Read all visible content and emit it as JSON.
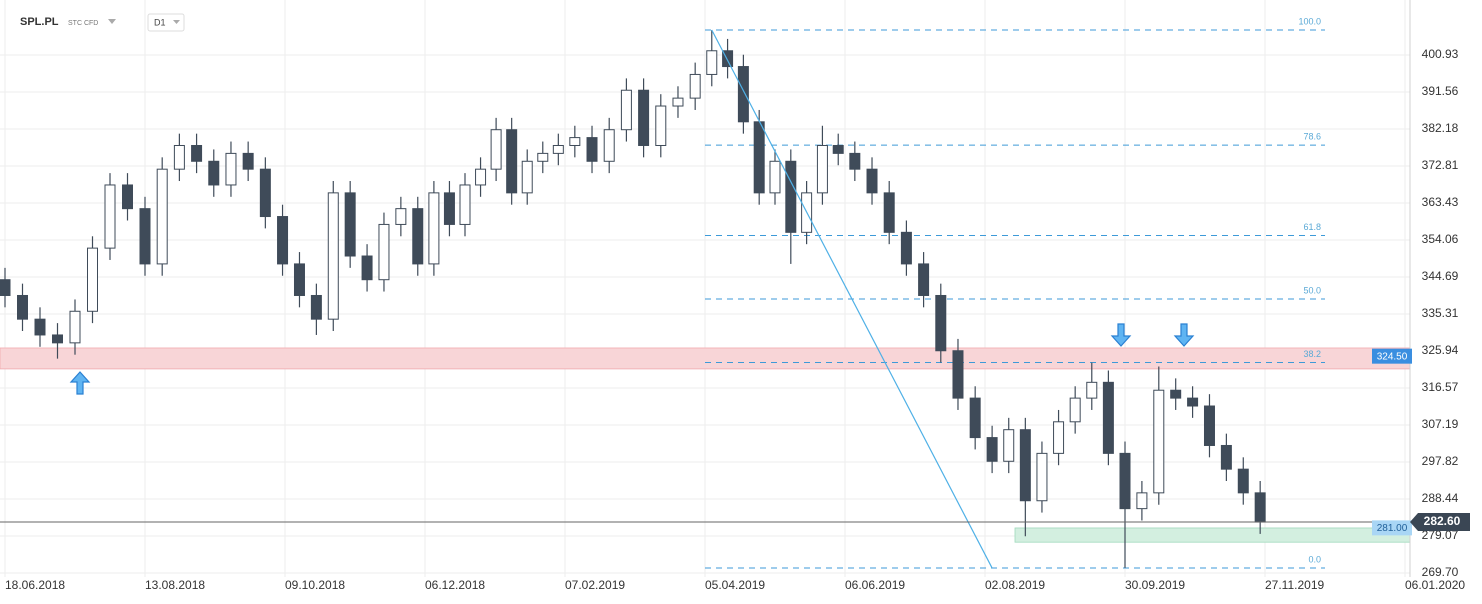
{
  "header": {
    "symbol": "SPL.PL",
    "instrument": "STC CFD",
    "interval": "D1"
  },
  "chart_data": {
    "type": "candlestick",
    "color": "#3f4b59",
    "grid": true,
    "xlim": [
      "18.06.2018",
      "06.01.2020"
    ],
    "xticks": [
      "18.06.2018",
      "13.08.2018",
      "09.10.2018",
      "06.12.2018",
      "07.02.2019",
      "05.04.2019",
      "06.06.2019",
      "02.08.2019",
      "30.09.2019",
      "27.11.2019",
      "06.01.2020"
    ],
    "ylim": [
      268.68,
      414.86
    ],
    "yticks": [
      {
        "value": 269.7,
        "label": "269.70"
      },
      279.07,
      288.44,
      297.82,
      307.19,
      316.57,
      325.94,
      335.31,
      344.69,
      354.06,
      363.43,
      372.81,
      382.18,
      391.56,
      400.93
    ],
    "x": [
      "18.06.2018",
      "25.06.2018",
      "02.07.2018",
      "09.07.2018",
      "16.07.2018",
      "23.07.2018",
      "30.07.2018",
      "06.08.2018",
      "13.08.2018",
      "20.08.2018",
      "27.08.2018",
      "03.09.2018",
      "10.09.2018",
      "17.09.2018",
      "24.09.2018",
      "01.10.2018",
      "08.10.2018",
      "15.10.2018",
      "22.10.2018",
      "29.10.2018",
      "05.11.2018",
      "12.11.2018",
      "19.11.2018",
      "26.11.2018",
      "03.12.2018",
      "10.12.2018",
      "17.12.2018",
      "24.12.2018",
      "31.12.2018",
      "07.01.2019",
      "14.01.2019",
      "21.01.2019",
      "28.01.2019",
      "04.02.2019",
      "11.02.2019",
      "18.02.2019",
      "25.02.2019",
      "04.03.2019",
      "11.03.2019",
      "18.03.2019",
      "25.03.2019",
      "01.04.2019",
      "08.04.2019",
      "15.04.2019",
      "22.04.2019",
      "29.04.2019",
      "06.05.2019",
      "13.05.2019",
      "20.05.2019",
      "27.05.2019",
      "03.06.2019",
      "10.06.2019",
      "17.06.2019",
      "24.06.2019",
      "01.07.2019",
      "08.07.2019",
      "15.07.2019",
      "22.07.2019",
      "29.07.2019",
      "05.08.2019",
      "12.08.2019",
      "19.08.2019",
      "26.08.2019",
      "02.09.2019",
      "09.09.2019",
      "16.09.2019",
      "23.09.2019",
      "30.09.2019",
      "07.10.2019",
      "14.10.2019",
      "21.10.2019",
      "28.10.2019",
      "04.11.2019",
      "11.11.2019",
      "18.11.2019",
      "25.11.2019"
    ],
    "open": [
      344,
      340,
      334,
      330,
      328,
      336,
      352,
      368,
      362,
      348,
      372,
      378,
      374,
      368,
      376,
      372,
      360,
      348,
      340,
      334,
      366,
      350,
      344,
      358,
      362,
      348,
      366,
      358,
      368,
      372,
      382,
      366,
      374,
      376,
      378,
      380,
      374,
      382,
      392,
      378,
      388,
      390,
      396,
      402,
      398,
      384,
      366,
      374,
      356,
      366,
      378,
      376,
      372,
      366,
      356,
      348,
      340,
      326,
      314,
      304,
      298,
      306,
      288,
      300,
      308,
      314,
      318,
      300,
      286,
      290,
      316,
      314,
      312,
      302,
      296,
      290
    ],
    "high": [
      347,
      343,
      337,
      333,
      339,
      355,
      371,
      371,
      365,
      375,
      381,
      381,
      377,
      379,
      379,
      375,
      363,
      351,
      343,
      369,
      369,
      353,
      361,
      365,
      365,
      369,
      369,
      371,
      375,
      385,
      385,
      377,
      379,
      381,
      383,
      383,
      385,
      395,
      395,
      391,
      393,
      399,
      407.26,
      405,
      401,
      387,
      377,
      377,
      369,
      383,
      381,
      379,
      375,
      369,
      359,
      351,
      343,
      329,
      317,
      307,
      309,
      309,
      303,
      311,
      317,
      323,
      321,
      303,
      293,
      322,
      319,
      317,
      315,
      305,
      299,
      293
    ],
    "low": [
      337,
      331,
      327,
      324,
      325,
      333,
      349,
      359,
      345,
      345,
      369,
      371,
      365,
      365,
      369,
      357,
      345,
      337,
      330,
      331,
      347,
      341,
      341,
      355,
      345,
      345,
      355,
      355,
      365,
      369,
      363,
      363,
      371,
      373,
      375,
      371,
      371,
      379,
      375,
      375,
      385,
      387,
      393,
      395,
      381,
      363,
      363,
      348,
      353,
      363,
      373,
      369,
      363,
      353,
      345,
      337,
      323,
      311,
      301,
      295,
      295,
      279,
      285,
      297,
      305,
      311,
      297,
      271,
      283,
      287,
      311,
      309,
      299,
      293,
      287,
      279.6
    ],
    "close": [
      340,
      334,
      330,
      328,
      336,
      352,
      368,
      362,
      348,
      372,
      378,
      374,
      368,
      376,
      372,
      360,
      348,
      340,
      334,
      366,
      350,
      344,
      358,
      362,
      348,
      366,
      358,
      368,
      372,
      382,
      366,
      374,
      376,
      378,
      380,
      374,
      382,
      392,
      378,
      388,
      390,
      396,
      402,
      398,
      384,
      366,
      374,
      356,
      366,
      378,
      376,
      372,
      366,
      356,
      348,
      340,
      326,
      314,
      304,
      298,
      306,
      288,
      300,
      308,
      314,
      318,
      300,
      286,
      290,
      316,
      314,
      312,
      302,
      296,
      290,
      282.6
    ],
    "fibonacci": {
      "low": 270.95,
      "high": 407.26,
      "start": "05.04.2019",
      "end": "27.11.2019",
      "levels": [
        {
          "value": 100,
          "label": "100.0"
        },
        {
          "value": 78.6,
          "label": "78.6"
        },
        {
          "value": 61.8,
          "label": "61.8"
        },
        {
          "value": 50,
          "label": "50.0"
        },
        {
          "value": 38.2,
          "label": "38.2"
        },
        {
          "value": 0,
          "label": "0.0"
        }
      ]
    },
    "trendline": {
      "x": [
        "08.04.2019",
        "05.08.2019"
      ],
      "y": [
        407.26,
        270.95
      ]
    },
    "zones": [
      {
        "color": "#f8d5d7",
        "range": [
          321.4,
          326.7
        ],
        "level": {
          "value": 324.5,
          "label": "324.50"
        }
      },
      {
        "color": "#d3efe0",
        "range": [
          277.5,
          281.1
        ],
        "level": {
          "value": 281,
          "label": "281.00"
        }
      }
    ],
    "last_price": {
      "value": 282.6,
      "label": "282.60"
    }
  }
}
